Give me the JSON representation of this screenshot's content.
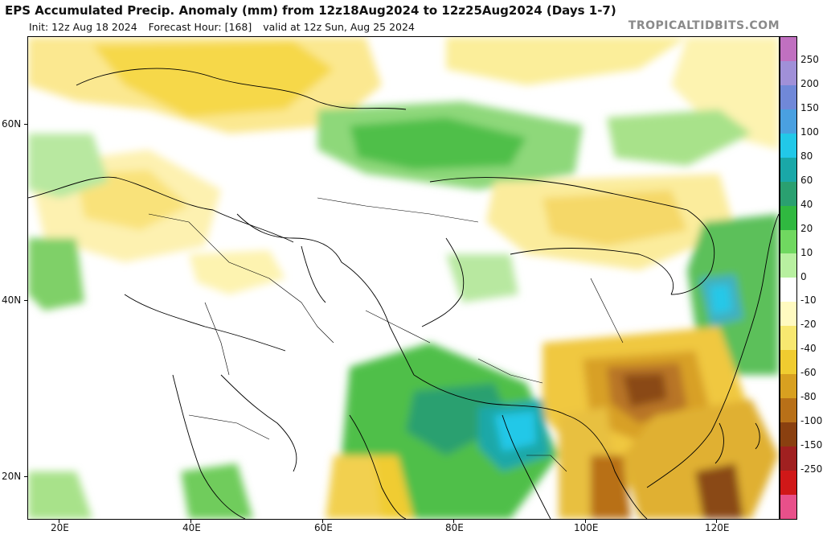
{
  "header": {
    "title": "EPS Accumulated Precip. Anomaly (mm) from 12z18Aug2024 to 12z25Aug2024 (Days 1-7)",
    "init": "Init: 12z Aug 18 2024",
    "forecast_hour": "Forecast Hour: [168]",
    "valid": "valid at 12z Sun, Aug 25 2024",
    "brand": "TROPICALTIDBITS.COM"
  },
  "map": {
    "lat_labels": [
      "60N",
      "40N",
      "20N"
    ],
    "lon_labels": [
      "20E",
      "40E",
      "60E",
      "80E",
      "100E",
      "120E"
    ]
  },
  "colorbar": {
    "labels": [
      "250",
      "200",
      "150",
      "100",
      "80",
      "60",
      "40",
      "20",
      "10",
      "0",
      "-10",
      "-20",
      "-40",
      "-60",
      "-80",
      "-100",
      "-150",
      "-250"
    ],
    "colors": [
      "#c070c0",
      "#a090d8",
      "#7088d8",
      "#4aa0e0",
      "#22c8e8",
      "#1aa8a8",
      "#2aa070",
      "#30b840",
      "#70d860",
      "#b8f0a0",
      "#ffffff",
      "#fffac0",
      "#f8e870",
      "#f0cc30",
      "#d8a020",
      "#b87018",
      "#8a4010",
      "#a02020",
      "#d01818",
      "#e8508a"
    ]
  }
}
